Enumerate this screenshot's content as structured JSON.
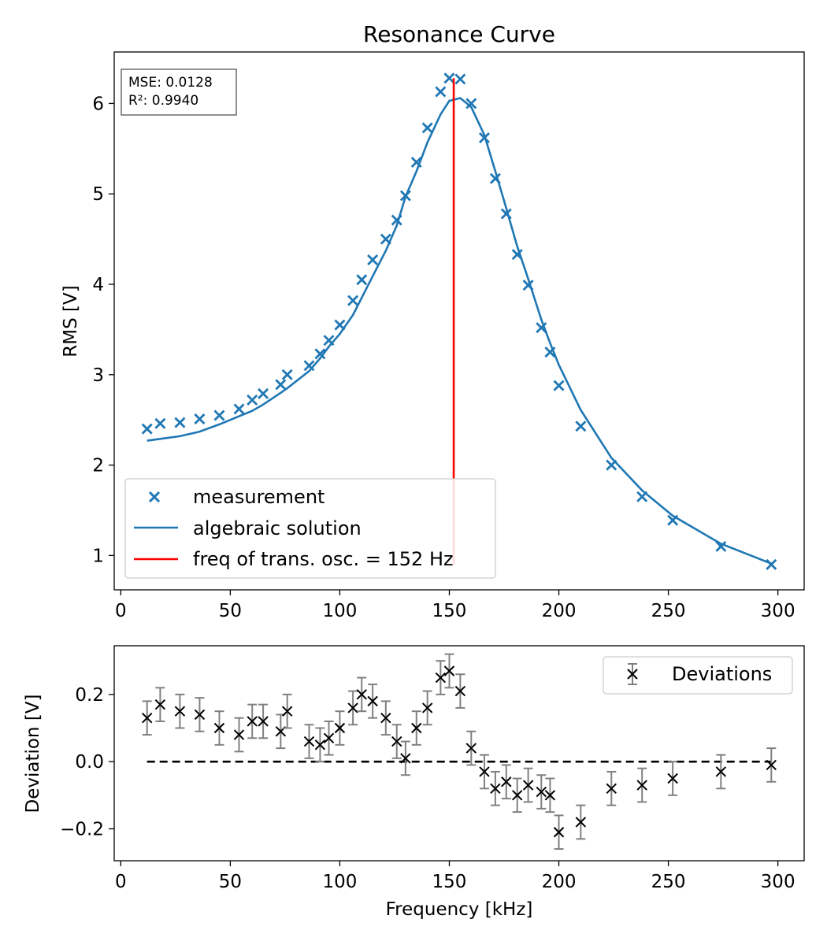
{
  "colors": {
    "measurement": "#1f77b4",
    "fit": "#1f77b4",
    "resonance": "#ff0000",
    "deviation_marker": "#000000",
    "errorbar": "#808080",
    "zero_line": "#000000"
  },
  "chart_data": [
    {
      "type": "scatter",
      "title": "Resonance Curve",
      "xlabel": "",
      "ylabel": "RMS [V]",
      "xlim": [
        -3,
        312
      ],
      "ylim": [
        0.62,
        6.57
      ],
      "xticks": [
        0,
        50,
        100,
        150,
        200,
        250,
        300
      ],
      "yticks": [
        1,
        2,
        3,
        4,
        5,
        6
      ],
      "grid": false,
      "legend_position": "lower-left",
      "annotation": [
        "MSE: 0.0128",
        "R²: 0.9940"
      ],
      "series": [
        {
          "name": "measurement",
          "type": "scatter",
          "marker": "x",
          "x": [
            12,
            18,
            27,
            36,
            45,
            54,
            60,
            65,
            73,
            76,
            86,
            91,
            95,
            100,
            106,
            110,
            115,
            121,
            126,
            130,
            135,
            140,
            146,
            150,
            155,
            160,
            166,
            171,
            176,
            181,
            186,
            192,
            196,
            200,
            210,
            224,
            238,
            252,
            274,
            297
          ],
          "y": [
            2.4,
            2.46,
            2.47,
            2.51,
            2.55,
            2.62,
            2.72,
            2.79,
            2.89,
            3.0,
            3.1,
            3.23,
            3.38,
            3.55,
            3.82,
            4.05,
            4.27,
            4.5,
            4.71,
            4.98,
            5.35,
            5.73,
            6.13,
            6.28,
            6.27,
            6.0,
            5.62,
            5.17,
            4.78,
            4.33,
            3.99,
            3.52,
            3.25,
            2.88,
            2.43,
            2.0,
            1.65,
            1.39,
            1.1,
            0.9
          ]
        },
        {
          "name": "algebraic solution",
          "type": "line",
          "x": [
            12,
            18,
            27,
            36,
            45,
            54,
            60,
            65,
            73,
            76,
            86,
            91,
            95,
            100,
            106,
            110,
            115,
            121,
            126,
            130,
            135,
            140,
            146,
            150,
            155,
            160,
            166,
            171,
            176,
            181,
            186,
            192,
            196,
            200,
            210,
            224,
            238,
            252,
            274,
            297
          ],
          "y": [
            2.27,
            2.29,
            2.32,
            2.37,
            2.45,
            2.54,
            2.6,
            2.67,
            2.8,
            2.85,
            3.04,
            3.18,
            3.31,
            3.45,
            3.66,
            3.85,
            4.09,
            4.37,
            4.65,
            4.97,
            5.25,
            5.57,
            5.88,
            6.03,
            6.06,
            5.96,
            5.65,
            5.25,
            4.84,
            4.42,
            4.06,
            3.61,
            3.35,
            3.11,
            2.61,
            2.08,
            1.72,
            1.44,
            1.13,
            0.91
          ]
        },
        {
          "name": "freq of trans. osc. = 152 Hz",
          "type": "vline",
          "x": 152,
          "ymin": 0.9,
          "ymax": 6.28
        }
      ]
    },
    {
      "type": "scatter",
      "title": "",
      "xlabel": "Frequency [kHz]",
      "ylabel": "Deviation [V]",
      "xlim": [
        -3,
        312
      ],
      "ylim": [
        -0.295,
        0.345
      ],
      "xticks": [
        0,
        50,
        100,
        150,
        200,
        250,
        300
      ],
      "yticks": [
        0.2,
        0.0,
        -0.2
      ],
      "ytick_labels": [
        "0.2",
        "0.0",
        "−0.2"
      ],
      "grid": false,
      "legend_position": "top-right",
      "error": 0.05,
      "series": [
        {
          "name": "Deviations",
          "type": "errorbar",
          "marker": "x",
          "x": [
            12,
            18,
            27,
            36,
            45,
            54,
            60,
            65,
            73,
            76,
            86,
            91,
            95,
            100,
            106,
            110,
            115,
            121,
            126,
            130,
            135,
            140,
            146,
            150,
            155,
            160,
            166,
            171,
            176,
            181,
            186,
            192,
            196,
            200,
            210,
            224,
            238,
            252,
            274,
            297
          ],
          "y": [
            0.13,
            0.17,
            0.15,
            0.14,
            0.1,
            0.08,
            0.12,
            0.12,
            0.09,
            0.15,
            0.06,
            0.05,
            0.07,
            0.1,
            0.16,
            0.2,
            0.18,
            0.13,
            0.06,
            0.01,
            0.1,
            0.16,
            0.25,
            0.27,
            0.21,
            0.04,
            -0.03,
            -0.08,
            -0.06,
            -0.1,
            -0.07,
            -0.09,
            -0.1,
            -0.21,
            -0.18,
            -0.08,
            -0.07,
            -0.05,
            -0.03,
            -0.01
          ]
        },
        {
          "name": "",
          "type": "hline",
          "y": 0.0,
          "xmin": 12,
          "xmax": 297
        }
      ]
    }
  ]
}
